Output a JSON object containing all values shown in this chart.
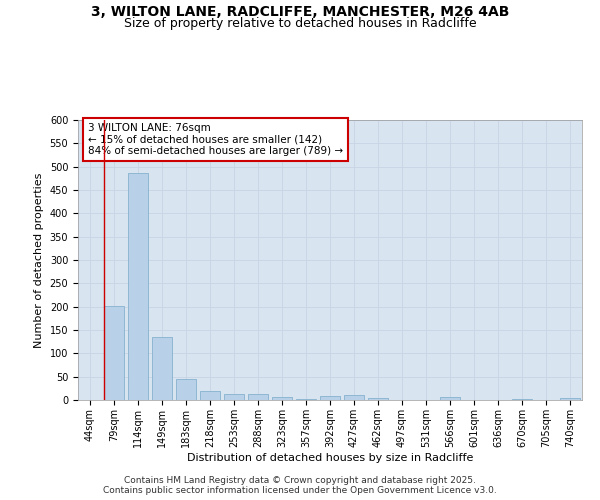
{
  "title_line1": "3, WILTON LANE, RADCLIFFE, MANCHESTER, M26 4AB",
  "title_line2": "Size of property relative to detached houses in Radcliffe",
  "xlabel": "Distribution of detached houses by size in Radcliffe",
  "ylabel": "Number of detached properties",
  "categories": [
    "44sqm",
    "79sqm",
    "114sqm",
    "149sqm",
    "183sqm",
    "218sqm",
    "253sqm",
    "288sqm",
    "323sqm",
    "357sqm",
    "392sqm",
    "427sqm",
    "462sqm",
    "497sqm",
    "531sqm",
    "566sqm",
    "601sqm",
    "636sqm",
    "670sqm",
    "705sqm",
    "740sqm"
  ],
  "values": [
    0,
    202,
    487,
    135,
    46,
    20,
    13,
    12,
    6,
    3,
    9,
    10,
    5,
    1,
    1,
    6,
    1,
    0,
    2,
    1,
    4
  ],
  "bar_color": "#b8d0e8",
  "bar_edge_color": "#7aaac8",
  "red_line_x": 0.6,
  "annotation_text": "3 WILTON LANE: 76sqm\n← 15% of detached houses are smaller (142)\n84% of semi-detached houses are larger (789) →",
  "annotation_box_color": "#ffffff",
  "annotation_box_edge": "#cc0000",
  "ylim": [
    0,
    600
  ],
  "yticks": [
    0,
    50,
    100,
    150,
    200,
    250,
    300,
    350,
    400,
    450,
    500,
    550,
    600
  ],
  "grid_color": "#c8d4e4",
  "background_color": "#d8e4f0",
  "fig_background": "#ffffff",
  "footer_text": "Contains HM Land Registry data © Crown copyright and database right 2025.\nContains public sector information licensed under the Open Government Licence v3.0.",
  "title_fontsize": 10,
  "subtitle_fontsize": 9,
  "axis_label_fontsize": 8,
  "tick_fontsize": 7,
  "annotation_fontsize": 7.5,
  "footer_fontsize": 6.5
}
